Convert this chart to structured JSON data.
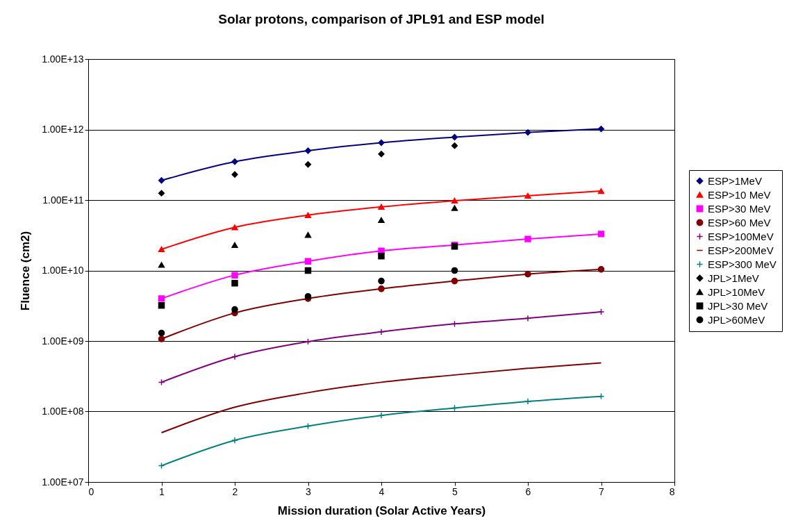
{
  "chart_data": {
    "type": "line",
    "title": "Solar protons, comparison of JPL91 and ESP model",
    "xlabel": "Mission duration (Solar Active Years)",
    "ylabel": "Fluence (cm2)",
    "x": [
      1,
      2,
      3,
      4,
      5,
      6,
      7
    ],
    "series": [
      {
        "name": "ESP>1MeV",
        "color": "#000080",
        "marker": "diamond",
        "values": [
          190000000000.0,
          350000000000.0,
          500000000000.0,
          650000000000.0,
          780000000000.0,
          910000000000.0,
          1020000000000.0
        ]
      },
      {
        "name": "ESP>10 MeV",
        "color": "#ff0000",
        "marker": "triangle",
        "values": [
          20000000000.0,
          41000000000.0,
          61000000000.0,
          80000000000.0,
          98000000000.0,
          115000000000.0,
          134000000000.0
        ]
      },
      {
        "name": "ESP>30 MeV",
        "color": "#ff00ff",
        "marker": "square",
        "values": [
          4000000000.0,
          8600000000.0,
          13500000000.0,
          19000000000.0,
          23000000000.0,
          28000000000.0,
          33000000000.0
        ]
      },
      {
        "name": "ESP>60 MeV",
        "color": "#800000",
        "marker": "circle",
        "values": [
          1070000000.0,
          2500000000.0,
          4000000000.0,
          5500000000.0,
          7100000000.0,
          8900000000.0,
          10400000000.0
        ]
      },
      {
        "name": "ESP>100MeV",
        "color": "#800080",
        "marker": "cross",
        "values": [
          260000000.0,
          600000000.0,
          980000000.0,
          1350000000.0,
          1750000000.0,
          2100000000.0,
          2600000000.0
        ]
      },
      {
        "name": "ESP>200MeV",
        "color": "#800000",
        "marker": "none",
        "values": [
          50000000.0,
          115000000.0,
          185000000.0,
          260000000.0,
          330000000.0,
          410000000.0,
          490000000.0
        ]
      },
      {
        "name": "ESP>300 MeV",
        "color": "#008080",
        "marker": "cross",
        "values": [
          17000000.0,
          39000000.0,
          62000000.0,
          88000000.0,
          112000000.0,
          139000000.0,
          164000000.0
        ]
      },
      {
        "name": "JPL>1MeV",
        "type": "scatter",
        "color": "#000000",
        "marker": "diamond",
        "x": [
          1,
          2,
          3,
          4,
          5
        ],
        "values": [
          125000000000.0,
          230000000000.0,
          320000000000.0,
          450000000000.0,
          590000000000.0
        ]
      },
      {
        "name": "JPL>10MeV",
        "type": "scatter",
        "color": "#000000",
        "marker": "triangle",
        "x": [
          1,
          2,
          3,
          4,
          5
        ],
        "values": [
          12000000000.0,
          23000000000.0,
          32000000000.0,
          52000000000.0,
          77000000000.0
        ]
      },
      {
        "name": "JPL>30 MeV",
        "type": "scatter",
        "color": "#000000",
        "marker": "square",
        "x": [
          1,
          2,
          3,
          4,
          5
        ],
        "values": [
          3200000000.0,
          6600000000.0,
          10000000000.0,
          16000000000.0,
          22000000000.0
        ]
      },
      {
        "name": "JPL>60MeV",
        "type": "scatter",
        "color": "#000000",
        "marker": "circle",
        "x": [
          1,
          2,
          3,
          4,
          5
        ],
        "values": [
          1300000000.0,
          2800000000.0,
          4300000000.0,
          7100000000.0,
          10000000000.0
        ]
      }
    ],
    "log": "y",
    "xlim": [
      0,
      8
    ],
    "xticks": [
      0,
      1,
      2,
      3,
      4,
      5,
      6,
      7,
      8
    ],
    "ylim": [
      10000000.0,
      10000000000000.0
    ],
    "yticks": [
      {
        "value": 10000000.0,
        "label": "1.00E+07"
      },
      {
        "value": 100000000.0,
        "label": "1.00E+08"
      },
      {
        "value": 1000000000.0,
        "label": "1.00E+09"
      },
      {
        "value": 10000000000.0,
        "label": "1.00E+10"
      },
      {
        "value": 100000000000.0,
        "label": "1.00E+11"
      },
      {
        "value": 1000000000000.0,
        "label": "1.00E+12"
      },
      {
        "value": 10000000000000.0,
        "label": "1.00E+13"
      }
    ],
    "grid": "y",
    "legend": "right"
  }
}
